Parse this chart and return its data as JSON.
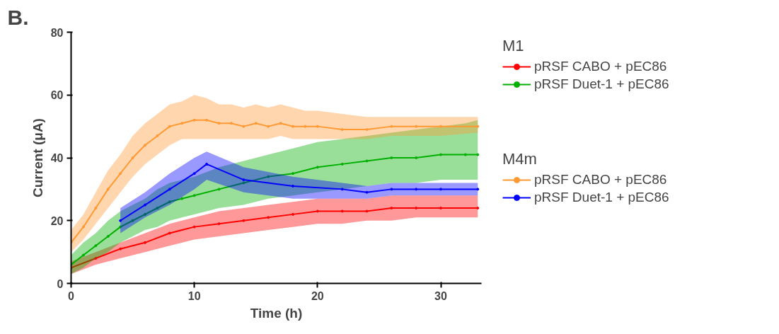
{
  "chart_data": {
    "type": "line",
    "xlabel": "Time (h)",
    "ylabel": "Current (μA)",
    "xlim": [
      0,
      33.3
    ],
    "ylim": [
      0,
      80
    ],
    "xticks": [
      0,
      10,
      20,
      30
    ],
    "yticks": [
      0,
      20,
      40,
      60,
      80
    ],
    "grid": false,
    "legend": "right",
    "marker": "circle",
    "annotations": [
      "B.",
      "M1",
      "M4m"
    ],
    "series": [
      {
        "name": "pRSF CABO + pEC86",
        "color": "#ff0000",
        "x": [
          0,
          2,
          4,
          6,
          8,
          10,
          12,
          14,
          16,
          18,
          20,
          22,
          24,
          26,
          28,
          30,
          33
        ],
        "values": [
          5,
          8,
          11,
          13,
          16,
          18,
          19,
          20,
          21,
          22,
          23,
          23,
          23,
          24,
          24,
          24,
          24
        ],
        "lower": [
          3,
          6,
          8,
          10,
          12,
          14,
          15,
          16,
          17,
          18,
          19,
          19,
          20,
          20,
          21,
          21,
          21
        ],
        "upper": [
          7,
          10,
          13,
          16,
          19,
          21,
          23,
          24,
          25,
          26,
          27,
          27,
          27,
          28,
          28,
          28,
          28
        ]
      },
      {
        "name": "pRSF Duet-1 + pEC86",
        "color": "#00b000",
        "x": [
          0,
          1,
          2,
          3,
          4,
          5,
          6,
          7,
          8,
          9,
          10,
          12,
          14,
          16,
          18,
          20,
          22,
          24,
          26,
          28,
          30,
          32,
          33
        ],
        "values": [
          6,
          9,
          12,
          15,
          18,
          20,
          22,
          24,
          26,
          27,
          28,
          30,
          32,
          34,
          35,
          37,
          38,
          39,
          40,
          40,
          41,
          41,
          41
        ],
        "lower": [
          3,
          5,
          8,
          10,
          13,
          15,
          17,
          18,
          20,
          21,
          22,
          24,
          25,
          27,
          28,
          29,
          30,
          31,
          32,
          32,
          33,
          33,
          33
        ],
        "upper": [
          9,
          13,
          16,
          20,
          23,
          25,
          27,
          30,
          32,
          33,
          34,
          37,
          39,
          41,
          43,
          45,
          46,
          47,
          48,
          49,
          50,
          51,
          52
        ]
      },
      {
        "name": "pRSF CABO + pEC86",
        "color": "#ff9933",
        "x": [
          0,
          1,
          2,
          3,
          4,
          5,
          6,
          7,
          8,
          9,
          10,
          11,
          12,
          13,
          14,
          15,
          16,
          17,
          18,
          19,
          20,
          22,
          24,
          26,
          28,
          30,
          33
        ],
        "values": [
          13,
          18,
          24,
          30,
          35,
          40,
          44,
          47,
          50,
          51,
          52,
          52,
          51,
          51,
          50,
          51,
          50,
          51,
          50,
          50,
          50,
          49,
          49,
          50,
          50,
          50,
          50
        ],
        "lower": [
          10,
          14,
          19,
          24,
          29,
          34,
          38,
          41,
          44,
          46,
          46,
          46,
          46,
          46,
          46,
          46,
          46,
          47,
          46,
          46,
          46,
          46,
          46,
          47,
          47,
          47,
          48
        ],
        "upper": [
          17,
          22,
          29,
          36,
          41,
          47,
          51,
          54,
          57,
          58,
          60,
          59,
          57,
          57,
          56,
          57,
          56,
          57,
          56,
          55,
          55,
          54,
          53,
          53,
          53,
          53,
          53
        ]
      },
      {
        "name": "pRSF Duet-1 + pEC86",
        "color": "#0000ff",
        "x": [
          4,
          6,
          8,
          10,
          11,
          14,
          18,
          22,
          24,
          26,
          28,
          30,
          33
        ],
        "values": [
          20,
          25,
          30,
          35,
          38,
          33,
          31,
          30,
          29,
          30,
          30,
          30,
          30
        ],
        "lower": [
          16,
          21,
          25,
          30,
          33,
          29,
          27,
          27,
          27,
          28,
          28,
          28,
          28
        ],
        "upper": [
          24,
          29,
          35,
          40,
          42,
          37,
          34,
          32,
          31,
          32,
          32,
          32,
          32
        ]
      }
    ]
  }
}
